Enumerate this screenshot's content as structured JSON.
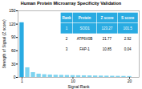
{
  "chart_data": {
    "type": "bar",
    "title": "Human Protein Microarray Specificity Validation",
    "xlabel": "Signal Rank",
    "ylabel": "Strength of Signal (Z score)",
    "x": [
      1,
      2,
      3,
      4,
      5,
      6,
      7,
      8,
      9,
      10,
      11,
      12,
      13,
      14,
      15,
      16,
      17,
      18,
      19,
      20
    ],
    "values": [
      123.27,
      21.77,
      10.85,
      7.5,
      6.2,
      5.5,
      5.0,
      4.7,
      4.4,
      4.1,
      3.9,
      3.7,
      3.5,
      3.3,
      3.1,
      2.9,
      2.7,
      2.5,
      2.3,
      2.1
    ],
    "colors": [
      "#29abe2",
      "#7fd4f0",
      "#7fd4f0",
      "#7fd4f0",
      "#7fd4f0",
      "#7fd4f0",
      "#7fd4f0",
      "#7fd4f0",
      "#7fd4f0",
      "#7fd4f0",
      "#7fd4f0",
      "#7fd4f0",
      "#7fd4f0",
      "#7fd4f0",
      "#7fd4f0",
      "#7fd4f0",
      "#7fd4f0",
      "#7fd4f0",
      "#7fd4f0",
      "#7fd4f0"
    ],
    "xlim": [
      0.3,
      21.7
    ],
    "xticks": [
      1,
      10,
      20
    ],
    "ylim": [
      0,
      150
    ],
    "yticks": [
      0,
      30,
      60,
      90,
      120,
      150
    ],
    "grid": false,
    "table": {
      "headers": [
        "Rank",
        "Protein",
        "Z score",
        "S score"
      ],
      "rows": [
        [
          "1",
          "SOD1",
          "123.27",
          "101.5"
        ],
        [
          "2",
          "ATP6V0B",
          "21.77",
          "2.92"
        ],
        [
          "3",
          "FAP-1",
          "10.85",
          "0.04"
        ]
      ]
    }
  }
}
